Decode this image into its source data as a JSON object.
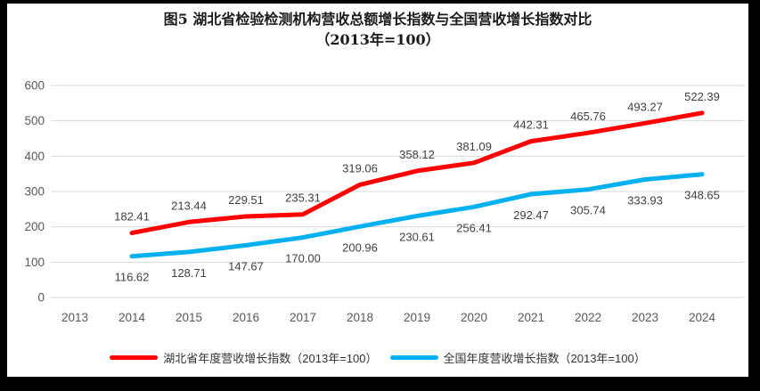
{
  "title": {
    "line1": "图5 湖北省检验检测机构营收总额增长指数与全国营收增长指数对比",
    "line2": "（2013年=100）"
  },
  "colors": {
    "frame": "#000000",
    "canvas": "#FFFFFF",
    "grid": "#D9D9D9",
    "axis_label": "#595959",
    "data_label": "#404040",
    "title": "#1A1A1A",
    "hubei_line": "#FF0000",
    "national_line": "#00B0F0"
  },
  "chart_data": {
    "type": "line",
    "title": "图5 湖北省检验检测机构营收总额增长指数与全国营收增长指数对比（2013年=100）",
    "categories": [
      2013,
      2014,
      2015,
      2016,
      2017,
      2018,
      2019,
      2020,
      2021,
      2022,
      2023,
      2024
    ],
    "series": [
      {
        "key": "hubei",
        "name": "湖北省年度营收增长指数（2013年=100）",
        "color": "#FF0000",
        "label_position": "above",
        "values": [
          null,
          182.41,
          213.44,
          229.51,
          235.31,
          319.06,
          358.12,
          381.09,
          442.31,
          465.76,
          493.27,
          522.39
        ]
      },
      {
        "key": "national",
        "name": "全国年度营收增长指数（2013年=100）",
        "color": "#00B0F0",
        "label_position": "below",
        "values": [
          null,
          116.62,
          128.71,
          147.67,
          170.0,
          200.96,
          230.61,
          256.41,
          292.47,
          305.74,
          333.93,
          348.65
        ]
      }
    ],
    "ylim": [
      0,
      600
    ],
    "ytick_step": 100,
    "xlabel": "",
    "ylabel": "",
    "grid": "horizontal-only",
    "legend_position": "bottom",
    "data_label_decimals": 2
  }
}
